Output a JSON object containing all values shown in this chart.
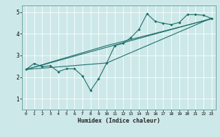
{
  "title": "",
  "xlabel": "Humidex (Indice chaleur)",
  "bg_color": "#cde8e8",
  "grid_color": "#b0d0d0",
  "line_color": "#1a6e6a",
  "xlim": [
    -0.5,
    23.5
  ],
  "ylim": [
    0.5,
    5.3
  ],
  "yticks": [
    1,
    2,
    3,
    4,
    5
  ],
  "xticks": [
    0,
    1,
    2,
    3,
    4,
    5,
    6,
    7,
    8,
    9,
    10,
    11,
    12,
    13,
    14,
    15,
    16,
    17,
    18,
    19,
    20,
    21,
    22,
    23
  ],
  "series0_x": [
    0,
    1,
    2,
    3,
    4,
    5,
    6,
    7,
    8,
    9,
    10,
    11,
    12,
    13,
    14,
    15,
    16,
    17,
    18,
    19,
    20,
    21,
    22,
    23
  ],
  "series0_y": [
    2.35,
    2.63,
    2.48,
    2.52,
    2.25,
    2.38,
    2.38,
    2.05,
    1.38,
    1.92,
    2.65,
    3.45,
    3.55,
    3.82,
    4.2,
    4.92,
    4.57,
    4.48,
    4.42,
    4.52,
    4.88,
    4.88,
    4.85,
    4.7
  ],
  "line1_x": [
    0,
    23
  ],
  "line1_y": [
    2.35,
    4.7
  ],
  "line2_x": [
    0,
    10,
    23
  ],
  "line2_y": [
    2.35,
    2.65,
    4.72
  ],
  "line3_x": [
    0,
    10,
    23
  ],
  "line3_y": [
    2.35,
    3.45,
    4.68
  ]
}
